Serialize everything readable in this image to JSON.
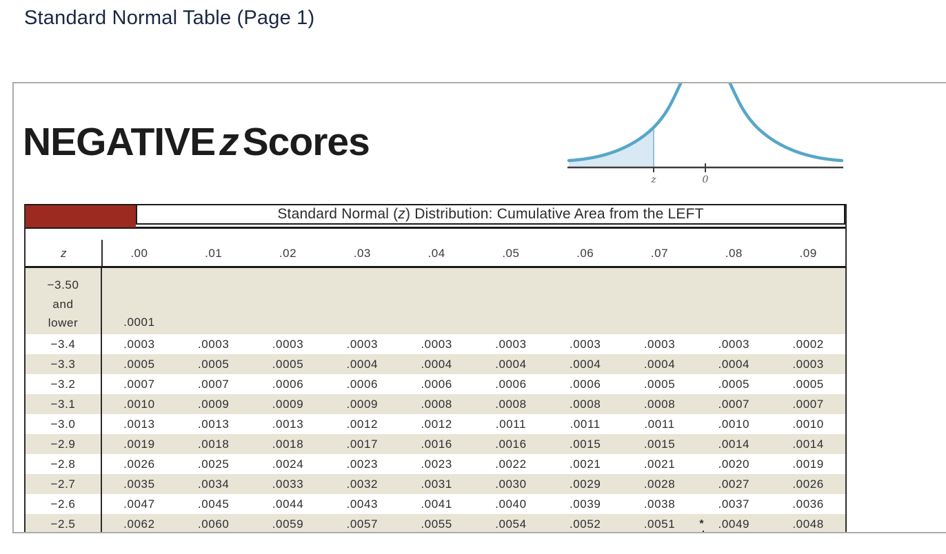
{
  "page": {
    "title": "Standard Normal Table (Page 1)"
  },
  "panel": {
    "heading": {
      "prefix": "NEGATIVE",
      "z": "z",
      "suffix": "Scores"
    },
    "curve": {
      "z_label": "z",
      "zero_label": "0",
      "curve_color": "#58a6c9",
      "fill_color": "#d9e9f3",
      "axis_color": "#3d3d3d",
      "label_color": "#5a5a5a"
    }
  },
  "table": {
    "banner": {
      "pre": "Standard Normal (",
      "z": "z",
      "post": ") Distribution: Cumulative Area from the LEFT"
    },
    "banner_block_color": "#9c2a21",
    "stripe_color": "#e8e4d6",
    "z_header": "z",
    "columns": [
      ".00",
      ".01",
      ".02",
      ".03",
      ".04",
      ".05",
      ".06",
      ".07",
      ".08",
      ".09"
    ],
    "footnote_marker": "*",
    "rows": [
      {
        "z": [
          "−3.50",
          "and",
          "lower"
        ],
        "shaded": true,
        "values": [
          ".0001",
          "",
          "",
          "",
          "",
          "",
          "",
          "",
          "",
          ""
        ]
      },
      {
        "z": [
          "−3.4"
        ],
        "shaded": false,
        "values": [
          ".0003",
          ".0003",
          ".0003",
          ".0003",
          ".0003",
          ".0003",
          ".0003",
          ".0003",
          ".0003",
          ".0002"
        ]
      },
      {
        "z": [
          "−3.3"
        ],
        "shaded": true,
        "values": [
          ".0005",
          ".0005",
          ".0005",
          ".0004",
          ".0004",
          ".0004",
          ".0004",
          ".0004",
          ".0004",
          ".0003"
        ]
      },
      {
        "z": [
          "−3.2"
        ],
        "shaded": false,
        "values": [
          ".0007",
          ".0007",
          ".0006",
          ".0006",
          ".0006",
          ".0006",
          ".0006",
          ".0005",
          ".0005",
          ".0005"
        ]
      },
      {
        "z": [
          "−3.1"
        ],
        "shaded": true,
        "values": [
          ".0010",
          ".0009",
          ".0009",
          ".0009",
          ".0008",
          ".0008",
          ".0008",
          ".0008",
          ".0007",
          ".0007"
        ]
      },
      {
        "z": [
          "−3.0"
        ],
        "shaded": false,
        "values": [
          ".0013",
          ".0013",
          ".0013",
          ".0012",
          ".0012",
          ".0011",
          ".0011",
          ".0011",
          ".0010",
          ".0010"
        ]
      },
      {
        "z": [
          "−2.9"
        ],
        "shaded": true,
        "values": [
          ".0019",
          ".0018",
          ".0018",
          ".0017",
          ".0016",
          ".0016",
          ".0015",
          ".0015",
          ".0014",
          ".0014"
        ]
      },
      {
        "z": [
          "−2.8"
        ],
        "shaded": false,
        "values": [
          ".0026",
          ".0025",
          ".0024",
          ".0023",
          ".0023",
          ".0022",
          ".0021",
          ".0021",
          ".0020",
          ".0019"
        ]
      },
      {
        "z": [
          "−2.7"
        ],
        "shaded": true,
        "values": [
          ".0035",
          ".0034",
          ".0033",
          ".0032",
          ".0031",
          ".0030",
          ".0029",
          ".0028",
          ".0027",
          ".0026"
        ]
      },
      {
        "z": [
          "−2.6"
        ],
        "shaded": false,
        "values": [
          ".0047",
          ".0045",
          ".0044",
          ".0043",
          ".0041",
          ".0040",
          ".0039",
          ".0038",
          ".0037",
          ".0036"
        ]
      },
      {
        "z": [
          "−2.5"
        ],
        "shaded": true,
        "asterisk_col": 8,
        "values": [
          ".0062",
          ".0060",
          ".0059",
          ".0057",
          ".0055",
          ".0054",
          ".0052",
          ".0051",
          ".0049",
          ".0048"
        ]
      }
    ]
  }
}
